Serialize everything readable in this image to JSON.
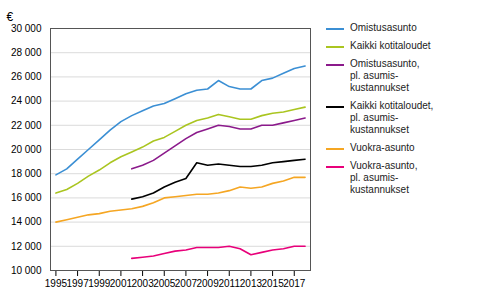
{
  "chart_data": {
    "type": "line",
    "ylabel": "€",
    "x": [
      1995,
      1996,
      1997,
      1998,
      1999,
      2000,
      2001,
      2002,
      2003,
      2004,
      2005,
      2006,
      2007,
      2008,
      2009,
      2010,
      2011,
      2012,
      2013,
      2014,
      2015,
      2016,
      2017,
      2018
    ],
    "series": [
      {
        "name": "Omistusasunto",
        "color": "#3b8fd4",
        "values": [
          17900,
          18400,
          19200,
          20000,
          20800,
          21600,
          22300,
          22800,
          23200,
          23600,
          23800,
          24200,
          24600,
          24900,
          25000,
          25700,
          25200,
          25000,
          25000,
          25700,
          25900,
          26300,
          26700,
          26900
        ]
      },
      {
        "name": "Kaikki kotitaloudet",
        "color": "#aac520",
        "values": [
          16400,
          16700,
          17200,
          17800,
          18300,
          18900,
          19400,
          19800,
          20200,
          20700,
          21000,
          21500,
          22000,
          22400,
          22600,
          22900,
          22700,
          22500,
          22500,
          22800,
          23000,
          23100,
          23300,
          23500
        ]
      },
      {
        "name": "Omistusasunto,\npl. asumis-\nkustannukset",
        "color": "#8b1a8b",
        "values": [
          null,
          null,
          null,
          null,
          null,
          null,
          null,
          18400,
          18700,
          19100,
          19700,
          20300,
          20900,
          21400,
          21700,
          22000,
          21900,
          21700,
          21700,
          22000,
          22000,
          22200,
          22400,
          22600
        ]
      },
      {
        "name": "Kaikki kotitaloudet,\npl. asumis-\nkustannukset",
        "color": "#000000",
        "values": [
          null,
          null,
          null,
          null,
          null,
          null,
          null,
          15900,
          16100,
          16400,
          16900,
          17300,
          17600,
          18900,
          18700,
          18800,
          18700,
          18600,
          18600,
          18700,
          18900,
          19000,
          19100,
          19200
        ]
      },
      {
        "name": "Vuokra-asunto",
        "color": "#f5a623",
        "values": [
          14000,
          14200,
          14400,
          14600,
          14700,
          14900,
          15000,
          15100,
          15300,
          15600,
          16000,
          16100,
          16200,
          16300,
          16300,
          16400,
          16600,
          16900,
          16800,
          16900,
          17200,
          17400,
          17700,
          17700
        ]
      },
      {
        "name": "Vuokra-asunto,\npl. asumis-\nkustannukset",
        "color": "#e8007a",
        "values": [
          null,
          null,
          null,
          null,
          null,
          null,
          null,
          11000,
          11100,
          11200,
          11400,
          11600,
          11700,
          11900,
          11900,
          11900,
          12000,
          11800,
          11300,
          11500,
          11700,
          11800,
          12000,
          12000
        ]
      }
    ],
    "xlim": [
      1994.5,
      2018.5
    ],
    "xticks": [
      1995,
      1997,
      1999,
      2001,
      2003,
      2005,
      2007,
      2009,
      2011,
      2013,
      2015,
      2017
    ],
    "ylim": [
      10000,
      30000
    ],
    "yticks": [
      {
        "value": 10000,
        "label": "10 000"
      },
      {
        "value": 12000,
        "label": "12 000"
      },
      {
        "value": 14000,
        "label": "14 000"
      },
      {
        "value": 16000,
        "label": "16 000"
      },
      {
        "value": 18000,
        "label": "18 000"
      },
      {
        "value": 20000,
        "label": "20 000"
      },
      {
        "value": 22000,
        "label": "22 000"
      },
      {
        "value": 24000,
        "label": "24 000"
      },
      {
        "value": 26000,
        "label": "26 000"
      },
      {
        "value": 28000,
        "label": "28 000"
      },
      {
        "value": 30000,
        "label": "30 000"
      }
    ],
    "grid": true,
    "legend": "right"
  }
}
